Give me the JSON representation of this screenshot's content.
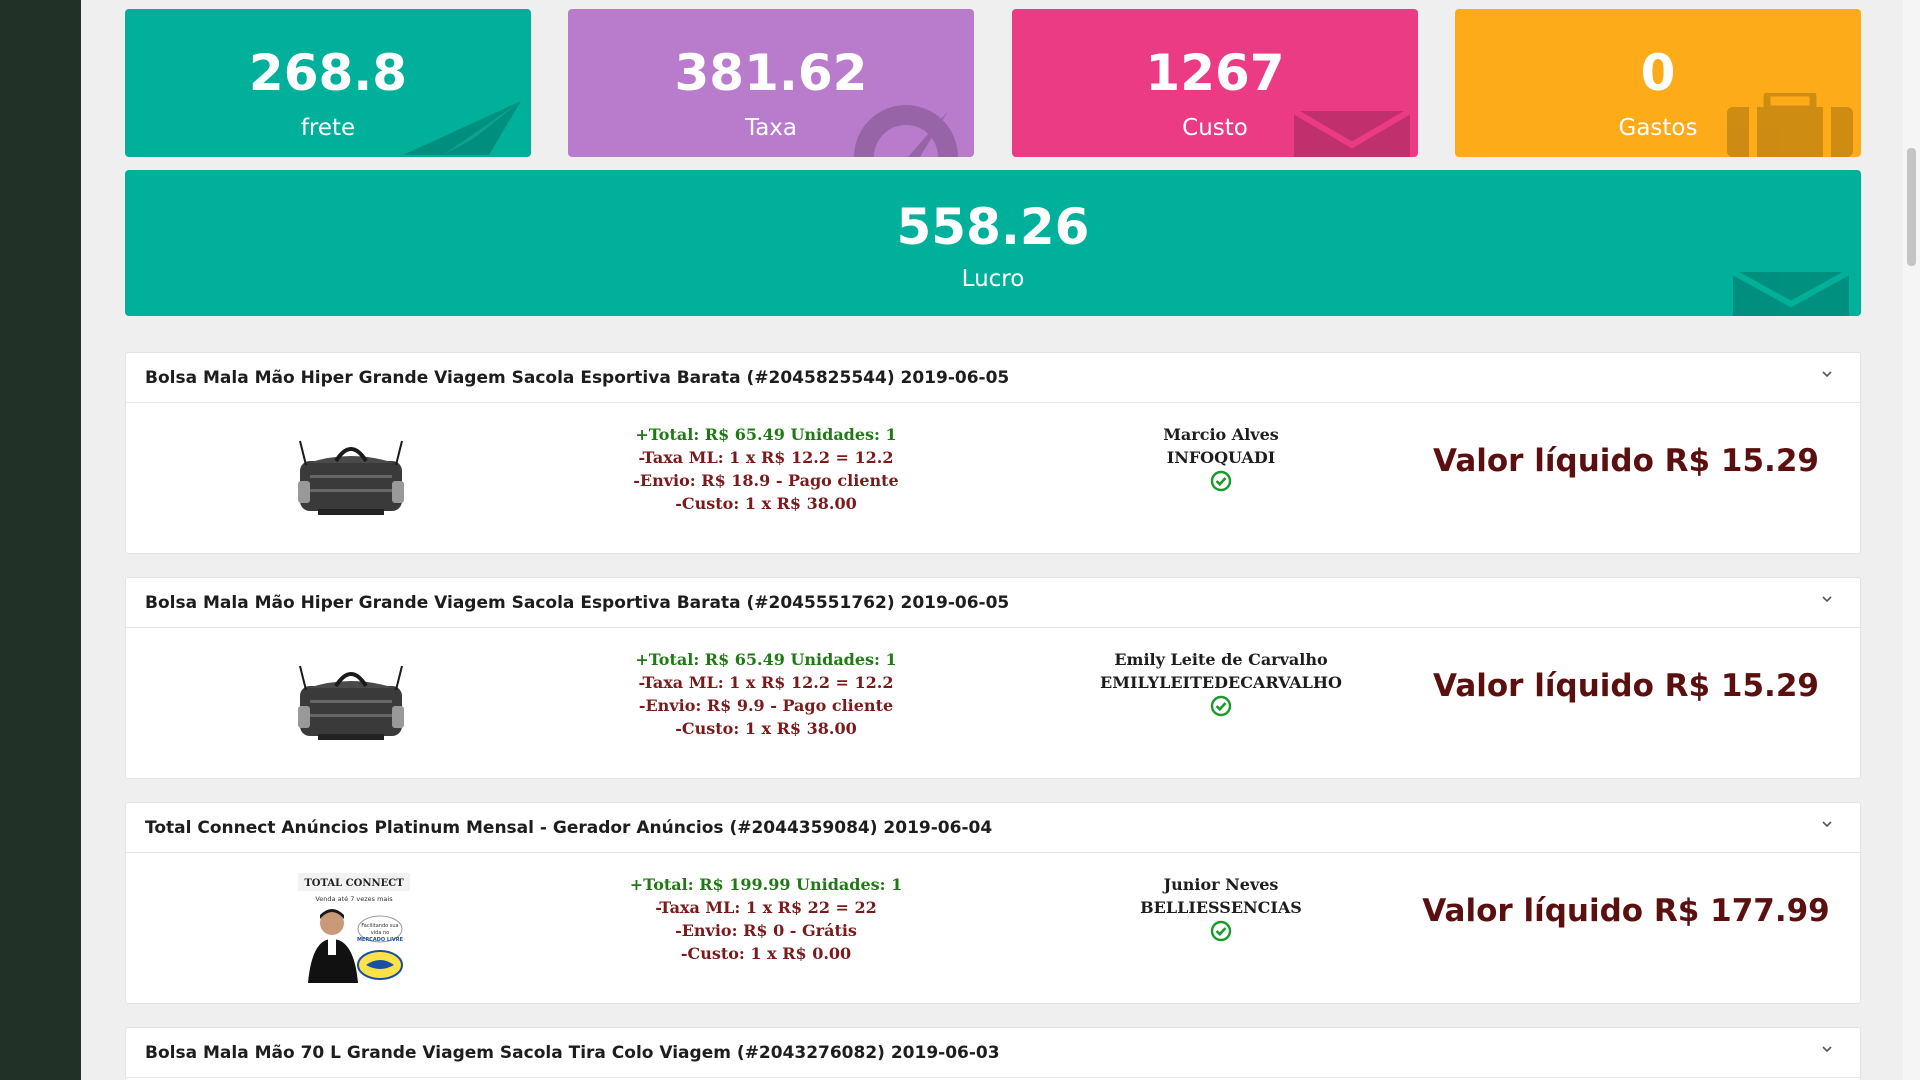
{
  "stats": [
    {
      "value": "268.8",
      "label": "frete",
      "icon": "paper-plane-icon",
      "color": "#00b09b"
    },
    {
      "value": "381.62",
      "label": "Taxa",
      "icon": "gauge-icon",
      "color": "#b97ccc"
    },
    {
      "value": "1267",
      "label": "Custo",
      "icon": "envelope-icon",
      "color": "#ec3b85"
    },
    {
      "value": "0",
      "label": "Gastos",
      "icon": "briefcase-icon",
      "color": "#fdab18"
    }
  ],
  "profit": {
    "value": "558.26",
    "label": "Lucro",
    "icon": "envelope-icon",
    "color": "#00b09b"
  },
  "orders": [
    {
      "title": "Bolsa Mala Mão Hiper Grande Viagem Sacola Esportiva Barata (#2045825544) 2019-06-05",
      "total_line": "+Total: R$ 65.49 Unidades: 1",
      "fee_line": "-Taxa ML: 1 x R$ 12.2 = 12.2",
      "shipping_line": "-Envio: R$ 18.9 - Pago cliente",
      "cost_line": "-Custo: 1 x R$ 38.00",
      "buyer_name": "Marcio Alves",
      "buyer_nick": "INFOQUADI",
      "net": "Valor líquido R$ 15.29",
      "image": "duffel-bag"
    },
    {
      "title": "Bolsa Mala Mão Hiper Grande Viagem Sacola Esportiva Barata (#2045551762) 2019-06-05",
      "total_line": "+Total: R$ 65.49 Unidades: 1",
      "fee_line": "-Taxa ML: 1 x R$ 12.2 = 12.2",
      "shipping_line": "-Envio: R$ 9.9 - Pago cliente",
      "cost_line": "-Custo: 1 x R$ 38.00",
      "buyer_name": "Emily Leite de Carvalho",
      "buyer_nick": "EMILYLEITEDECARVALHO",
      "net": "Valor líquido R$ 15.29",
      "image": "duffel-bag"
    },
    {
      "title": "Total Connect Anúncios Platinum Mensal - Gerador Anúncios (#2044359084) 2019-06-04",
      "total_line": "+Total: R$ 199.99 Unidades: 1",
      "fee_line": "-Taxa ML: 1 x R$ 22 = 22",
      "shipping_line": "-Envio: R$ 0 - Grátis",
      "cost_line": "-Custo: 1 x R$ 0.00",
      "buyer_name": "Junior Neves",
      "buyer_nick": "BELLIESSENCIAS",
      "net": "Valor líquido R$ 177.99",
      "image": "total-connect-banner",
      "image_text": {
        "brand": "TOTAL CONNECT",
        "tagline": "Venda até 7 vezes mais",
        "bubble": "Facilitando sua vida no MERCADO LIVRE"
      }
    },
    {
      "title": "Bolsa Mala Mão 70 L Grande Viagem Sacola Tira Colo Viagem (#2043276082) 2019-06-03"
    }
  ],
  "colors": {
    "sidebar": "#213128",
    "page_bg": "#efefef",
    "net_value": "#5b0f0f",
    "total_green": "#1f7a14",
    "check_green": "#1a9a2a"
  }
}
